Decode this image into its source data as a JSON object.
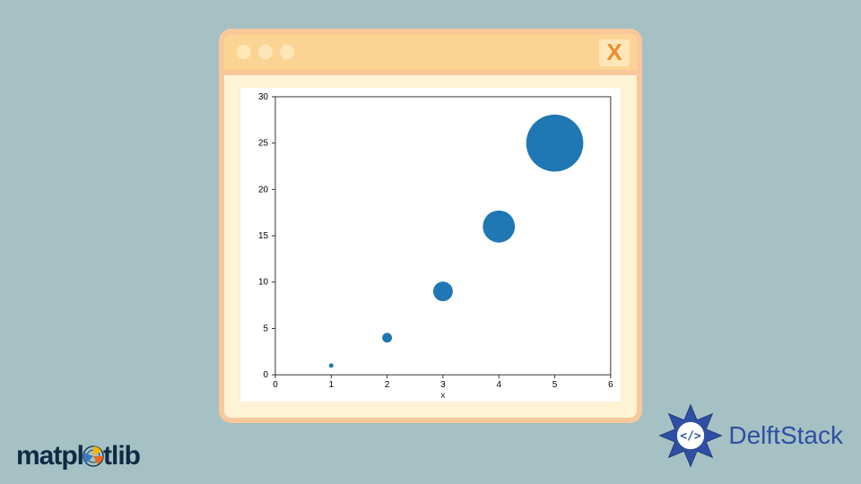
{
  "background_color": "#a6c1c4",
  "window": {
    "frame_color": "#f8c89a",
    "panel_color": "#fff3d6",
    "titlebar_color": "#fbd393",
    "dot_color": "#fde7b8",
    "close_box_color": "#fde7b8",
    "close_x_color": "#f28a2e",
    "close_label": "X"
  },
  "chart": {
    "type": "scatter",
    "background_color": "#ffffff",
    "border_color": "#333333",
    "xlabel": "x",
    "xlabel_fontsize": 10,
    "xlim": [
      0,
      6
    ],
    "xticks": [
      0,
      1,
      2,
      3,
      4,
      5,
      6
    ],
    "ylim": [
      0,
      30
    ],
    "yticks": [
      0,
      5,
      10,
      15,
      20,
      25,
      30
    ],
    "tick_fontsize": 10,
    "marker_color": "#1f77b4",
    "points": [
      {
        "x": 1,
        "y": 1,
        "r": 2.5
      },
      {
        "x": 2,
        "y": 4,
        "r": 5.5
      },
      {
        "x": 3,
        "y": 9,
        "r": 11
      },
      {
        "x": 4,
        "y": 16,
        "r": 18
      },
      {
        "x": 5,
        "y": 25,
        "r": 32
      }
    ]
  },
  "logos": {
    "matplotlib": {
      "text_before": "matpl",
      "text_after": "tlib",
      "text_color": "#0d2b44",
      "icon_colors": {
        "ring": "#0d2b44",
        "wedge1": "#f7b500",
        "wedge2": "#e86a1c",
        "wedge3": "#3a7bbf"
      }
    },
    "delftstack": {
      "text": "DelftStack",
      "text_color": "#2e4fa3",
      "icon_fill": "#2e4fa3",
      "icon_stroke": "#1a2f6b"
    }
  }
}
